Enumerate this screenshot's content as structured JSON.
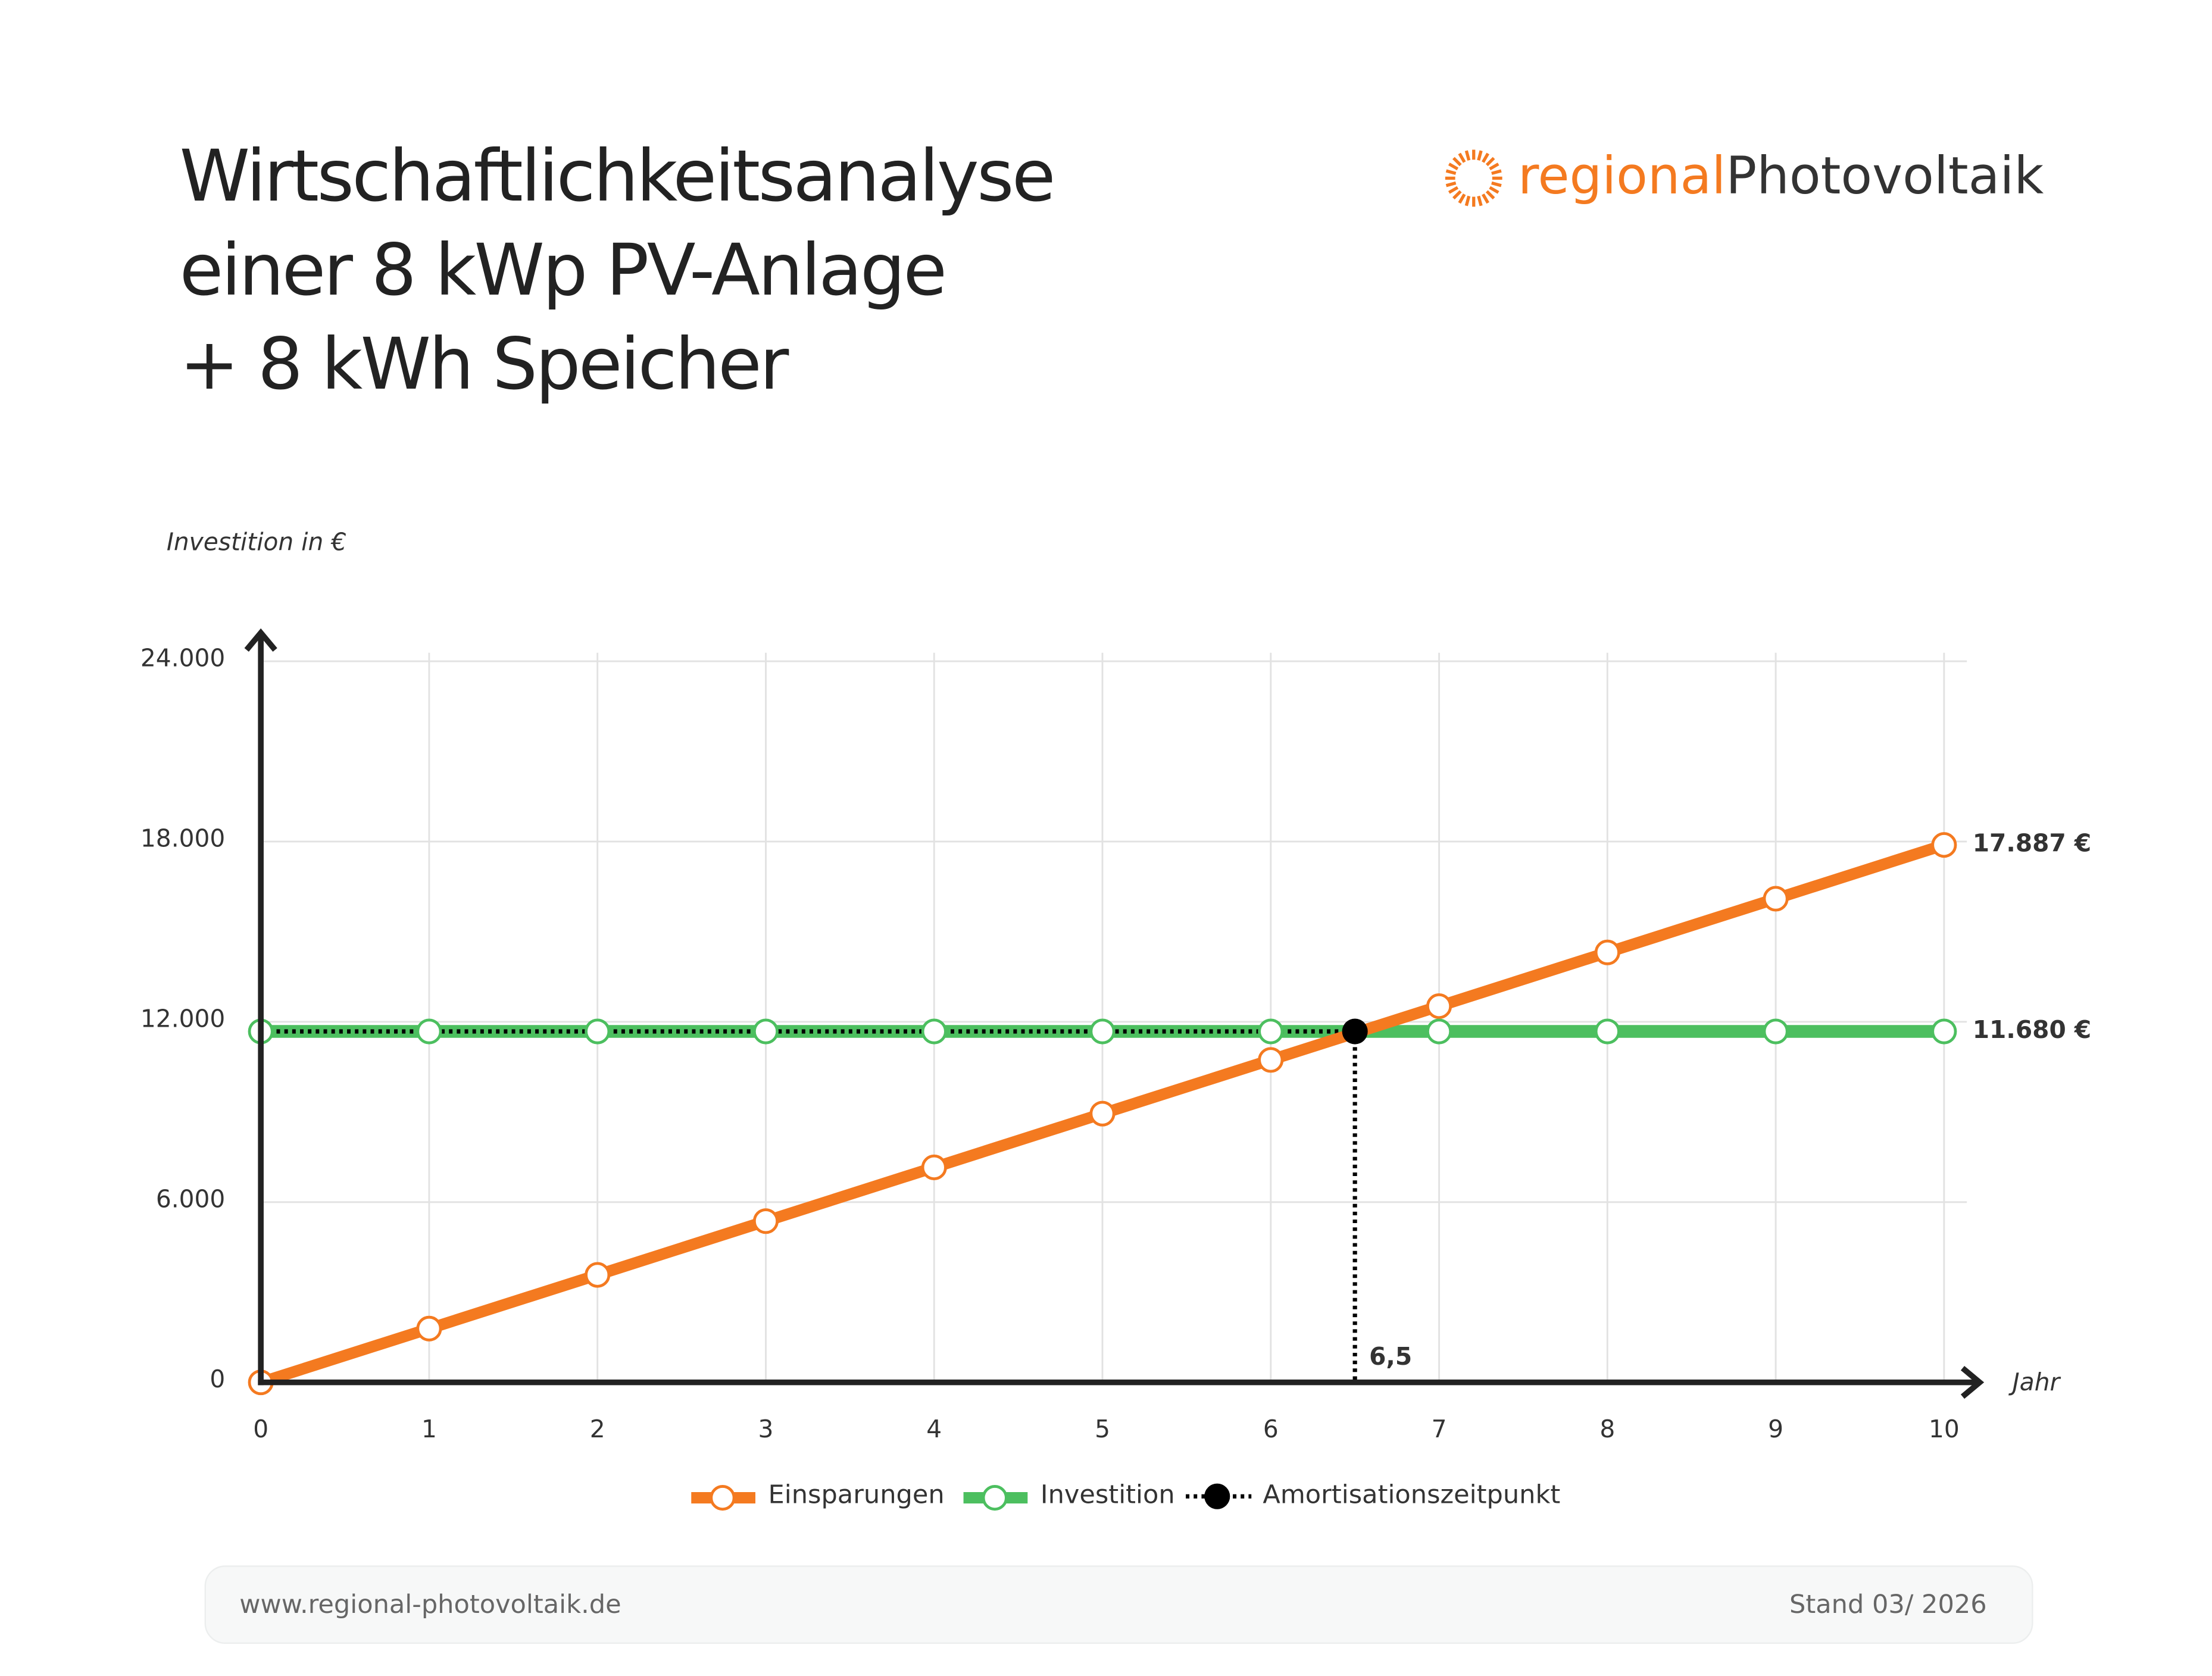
{
  "brand": {
    "part1": "regional",
    "part2": "Photovoltaik"
  },
  "chart_data": {
    "type": "line",
    "title": [
      "Wirtschaftlichkeitsanalyse",
      "einer 8 kWp PV-Anlage",
      "+ 8 kWh Speicher"
    ],
    "y_label": "Investition in €",
    "x_label": "Jahr",
    "x": [
      0,
      1,
      2,
      3,
      4,
      5,
      6,
      7,
      8,
      9,
      10
    ],
    "xlim": [
      0,
      10
    ],
    "xticks": [
      0,
      1,
      2,
      3,
      4,
      5,
      6,
      7,
      8,
      9,
      10
    ],
    "ylim": [
      0,
      24000
    ],
    "yticks": [
      0,
      {
        "value": 6000,
        "label": "6.000"
      },
      {
        "value": 12000,
        "label": "12.000"
      },
      {
        "value": 18000,
        "label": "18.000"
      },
      {
        "value": 24000,
        "label": "24.000"
      }
    ],
    "grid": true,
    "series": [
      {
        "name": "Einsparungen",
        "color": "#f47a20",
        "values": [
          0,
          1789,
          3577,
          5366,
          7155,
          8944,
          10732,
          12521,
          14310,
          16098,
          17887
        ],
        "value_labels": [
          null,
          null,
          null,
          null,
          null,
          null,
          null,
          null,
          null,
          null,
          "17.887 €"
        ]
      },
      {
        "name": "Investition",
        "color": "#4cbf5f",
        "values": [
          11680,
          11680,
          11680,
          11680,
          11680,
          11680,
          11680,
          11680,
          11680,
          11680,
          11680
        ],
        "value_labels": [
          null,
          null,
          null,
          null,
          null,
          null,
          null,
          null,
          null,
          null,
          "11.680 €"
        ]
      }
    ],
    "amortization": {
      "name": "Amortisationszeitpunkt",
      "x": 6.5,
      "y": 11680,
      "label": "6,5",
      "color": "#000000"
    }
  },
  "footer": {
    "url": "www.regional-photovoltaik.de",
    "date": "Stand 03/ 2026"
  }
}
